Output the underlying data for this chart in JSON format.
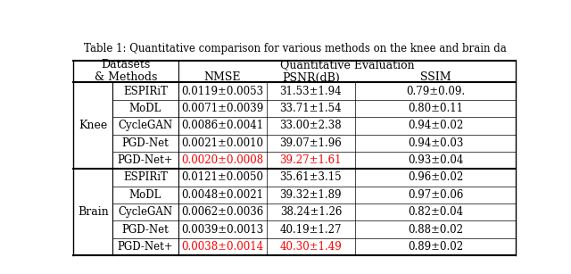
{
  "title": "Table 1: Quantitative comparison for various methods on the knee and brain da",
  "knee_rows": [
    [
      "ESPIRiT",
      "0.0119±0.0053",
      "31.53±1.94",
      "0.79±0.09."
    ],
    [
      "MoDL",
      "0.0071±0.0039",
      "33.71±1.54",
      "0.80±0.11"
    ],
    [
      "CycleGAN",
      "0.0086±0.0041",
      "33.00±2.38",
      "0.94±0.02"
    ],
    [
      "PGD-Net",
      "0.0021±0.0010",
      "39.07±1.96",
      "0.94±0.03"
    ],
    [
      "PGD-Net+",
      "0.0020±0.0008",
      "39.27±1.61",
      "0.93±0.04"
    ]
  ],
  "brain_rows": [
    [
      "ESPIRiT",
      "0.0121±0.0050",
      "35.61±3.15",
      "0.96±0.02"
    ],
    [
      "MoDL",
      "0.0048±0.0021",
      "39.32±1.89",
      "0.97±0.06"
    ],
    [
      "CycleGAN",
      "0.0062±0.0036",
      "38.24±1.26",
      "0.82±0.04"
    ],
    [
      "PGD-Net",
      "0.0039±0.0013",
      "40.19±1.27",
      "0.88±0.02"
    ],
    [
      "PGD-Net+",
      "0.0038±0.0014",
      "40.30±1.49",
      "0.89±0.02"
    ]
  ],
  "knee_red_row": 4,
  "knee_red_cols": [
    1,
    2
  ],
  "brain_red_row": 4,
  "brain_red_cols": [
    1,
    2
  ],
  "bg_color": "#ffffff",
  "red_color": "#ff0000",
  "black_color": "#000000",
  "title_fs": 8.5,
  "header_fs": 9.0,
  "cell_fs": 8.5
}
